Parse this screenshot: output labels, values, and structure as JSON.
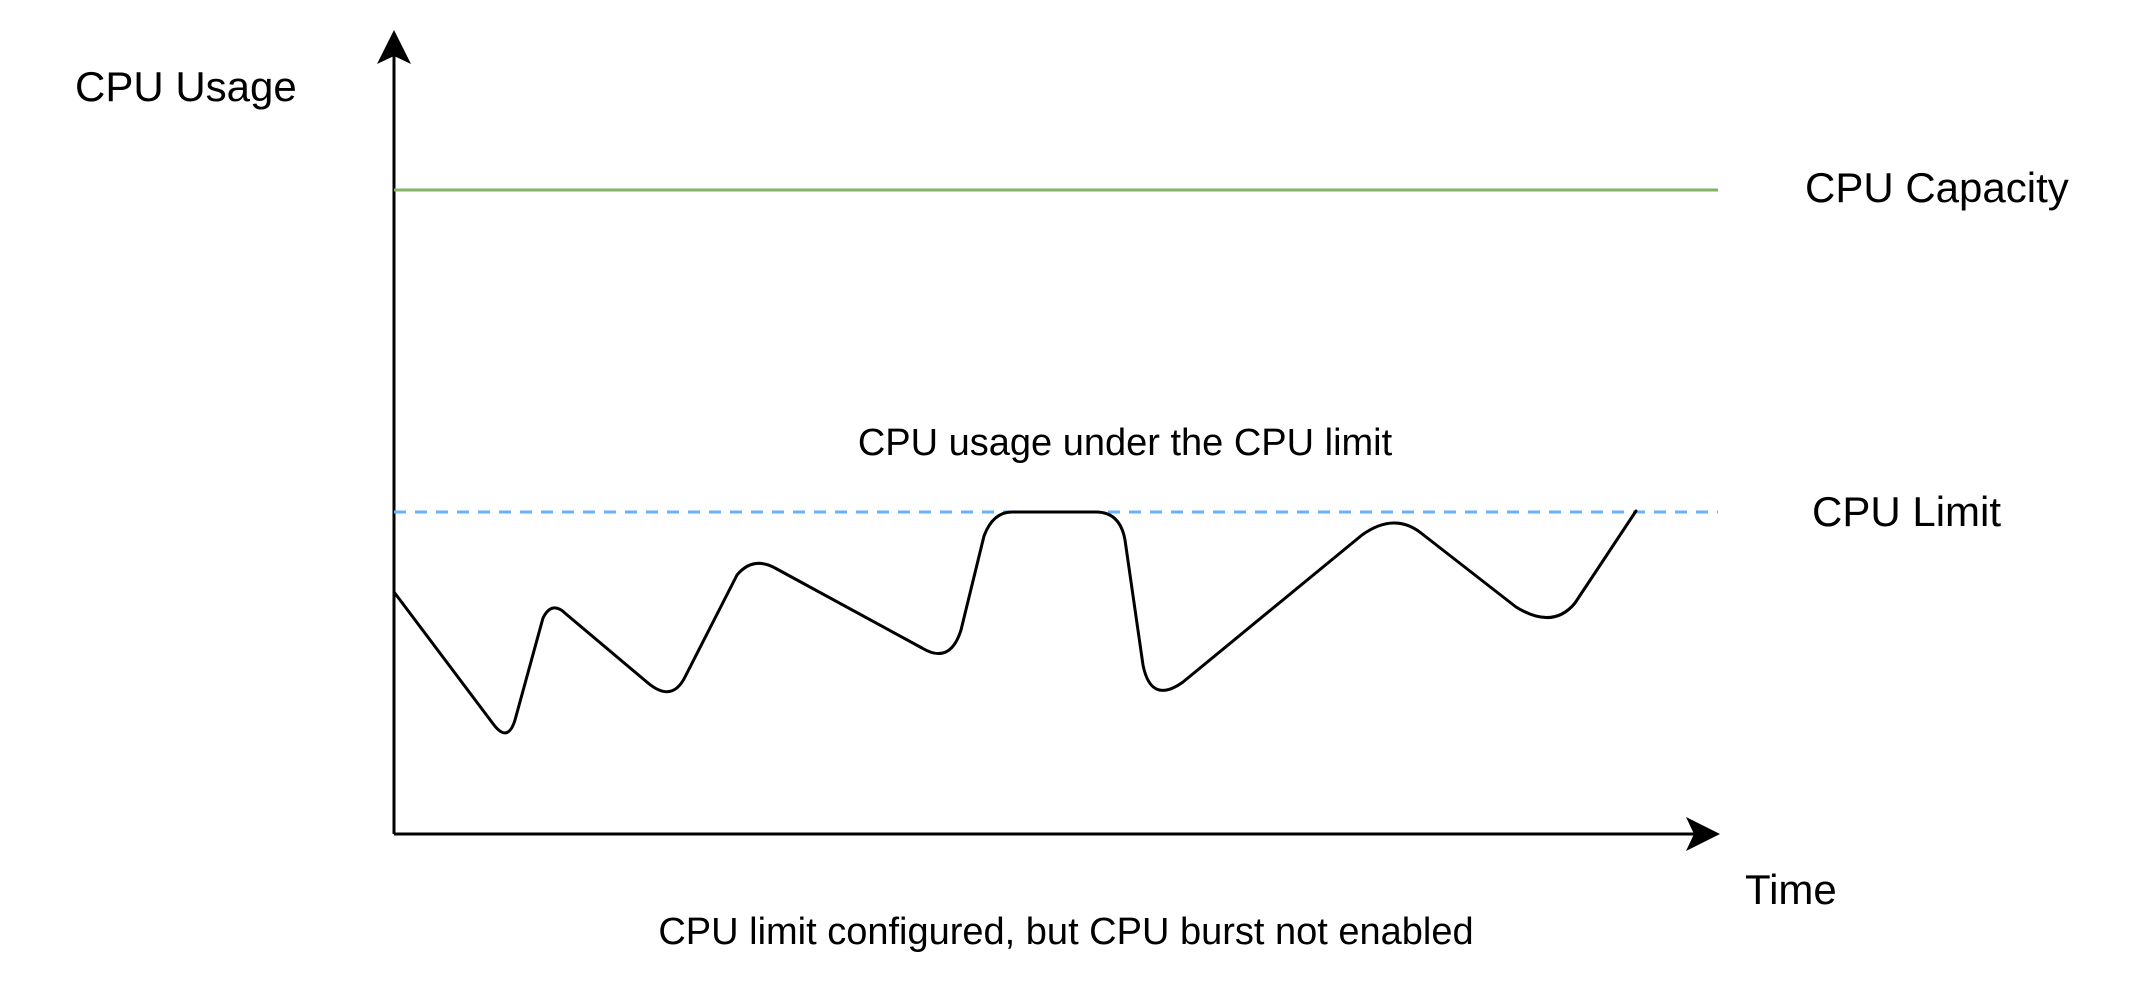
{
  "diagram": {
    "axes": {
      "y_label": "CPU Usage",
      "x_label": "Time"
    },
    "capacity": {
      "label": "CPU Capacity",
      "color": "#82b366"
    },
    "limit": {
      "label": "CPU Limit",
      "color": "#66b2ff"
    },
    "usage": {
      "annotation": "CPU usage under the CPU limit",
      "color": "#000000"
    },
    "caption": "CPU limit configured, but CPU burst not enabled"
  }
}
